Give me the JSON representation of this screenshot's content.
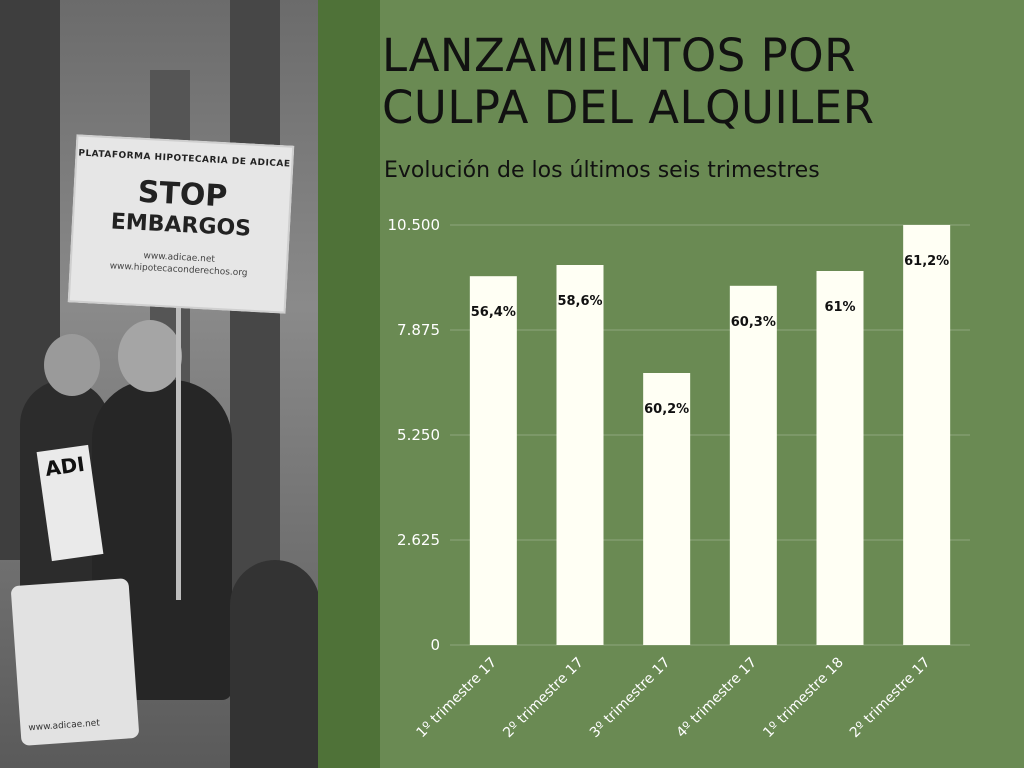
{
  "title_line1": "LANZAMIENTOS POR",
  "title_line2": "CULPA DEL ALQUILER",
  "subtitle": "Evolución de los últimos seis trimestres",
  "photo": {
    "sign_top": "PLATAFORMA HIPOTECARIA DE ADICAE",
    "sign_main1": "STOP",
    "sign_main2": "EMBARGOS",
    "sign_url1": "www.adicae.net",
    "sign_url2": "www.hipotecaconderechos.org",
    "poster_text": "ADI",
    "bag_text": "www.adicae.net"
  },
  "colors": {
    "background": "#6a8a53",
    "bar": "#fffff4",
    "grid": "#8fa77c"
  },
  "chart_data": {
    "type": "bar",
    "title": "LANZAMIENTOS POR CULPA DEL ALQUILER",
    "subtitle": "Evolución de los últimos seis trimestres",
    "categories": [
      "1º trimestre 17",
      "2º trimestre 17",
      "3º trimestre 17",
      "4º trimestre 17",
      "1º trimestre 18",
      "2º trimestre 17"
    ],
    "values": [
      9220,
      9500,
      6800,
      8980,
      9350,
      10500
    ],
    "data_labels": [
      "56,4%",
      "58,6%",
      "60,2%",
      "60,3%",
      "61%",
      "61,2%"
    ],
    "yticks": [
      0,
      2625,
      5250,
      7875,
      10500
    ],
    "ytick_labels": [
      "0",
      "2.625",
      "5.250",
      "7.875",
      "10.500"
    ],
    "ylim": [
      0,
      10500
    ],
    "grid": true,
    "xlabel": "",
    "ylabel": ""
  }
}
